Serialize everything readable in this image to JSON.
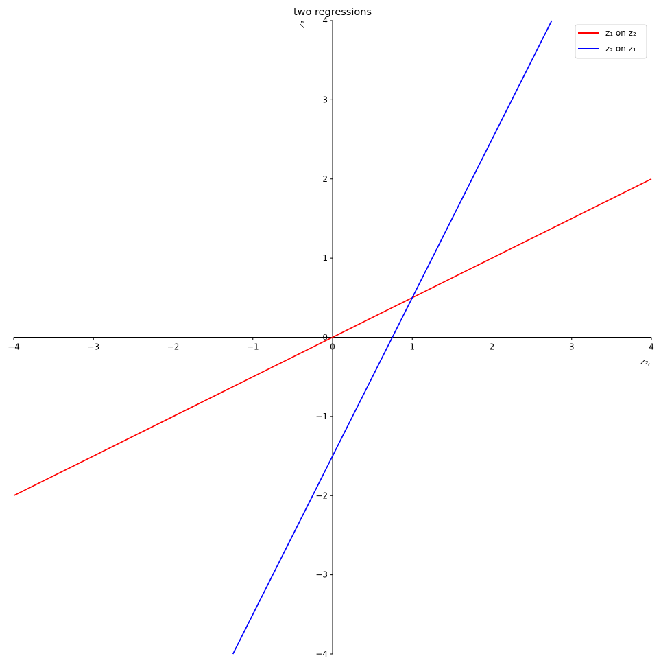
{
  "chart_data": {
    "type": "line",
    "title": "two regressions",
    "xlabel": "z₂,",
    "ylabel": "z₁",
    "xlim": [
      -4,
      4
    ],
    "ylim": [
      -4,
      4
    ],
    "xticks": [
      -4,
      -3,
      -2,
      -1,
      0,
      1,
      2,
      3,
      4
    ],
    "yticks": [
      -4,
      -3,
      -2,
      -1,
      0,
      1,
      2,
      3,
      4
    ],
    "xtick_labels": [
      "−4",
      "−3",
      "−2",
      "−1",
      "0",
      "1",
      "2",
      "3",
      "4"
    ],
    "ytick_labels": [
      "−4",
      "−3",
      "−2",
      "−1",
      "0",
      "1",
      "2",
      "3",
      "4"
    ],
    "spines": "centered at origin",
    "grid": false,
    "legend_position": "top-right",
    "series": [
      {
        "name": "z₁ on z₂",
        "color": "#ff0000",
        "x": [
          -4,
          4
        ],
        "y": [
          -2,
          2
        ]
      },
      {
        "name": "z₂ on z₁",
        "color": "#0000ff",
        "x": [
          -1.25,
          2.75
        ],
        "y": [
          -4,
          4
        ]
      }
    ]
  }
}
